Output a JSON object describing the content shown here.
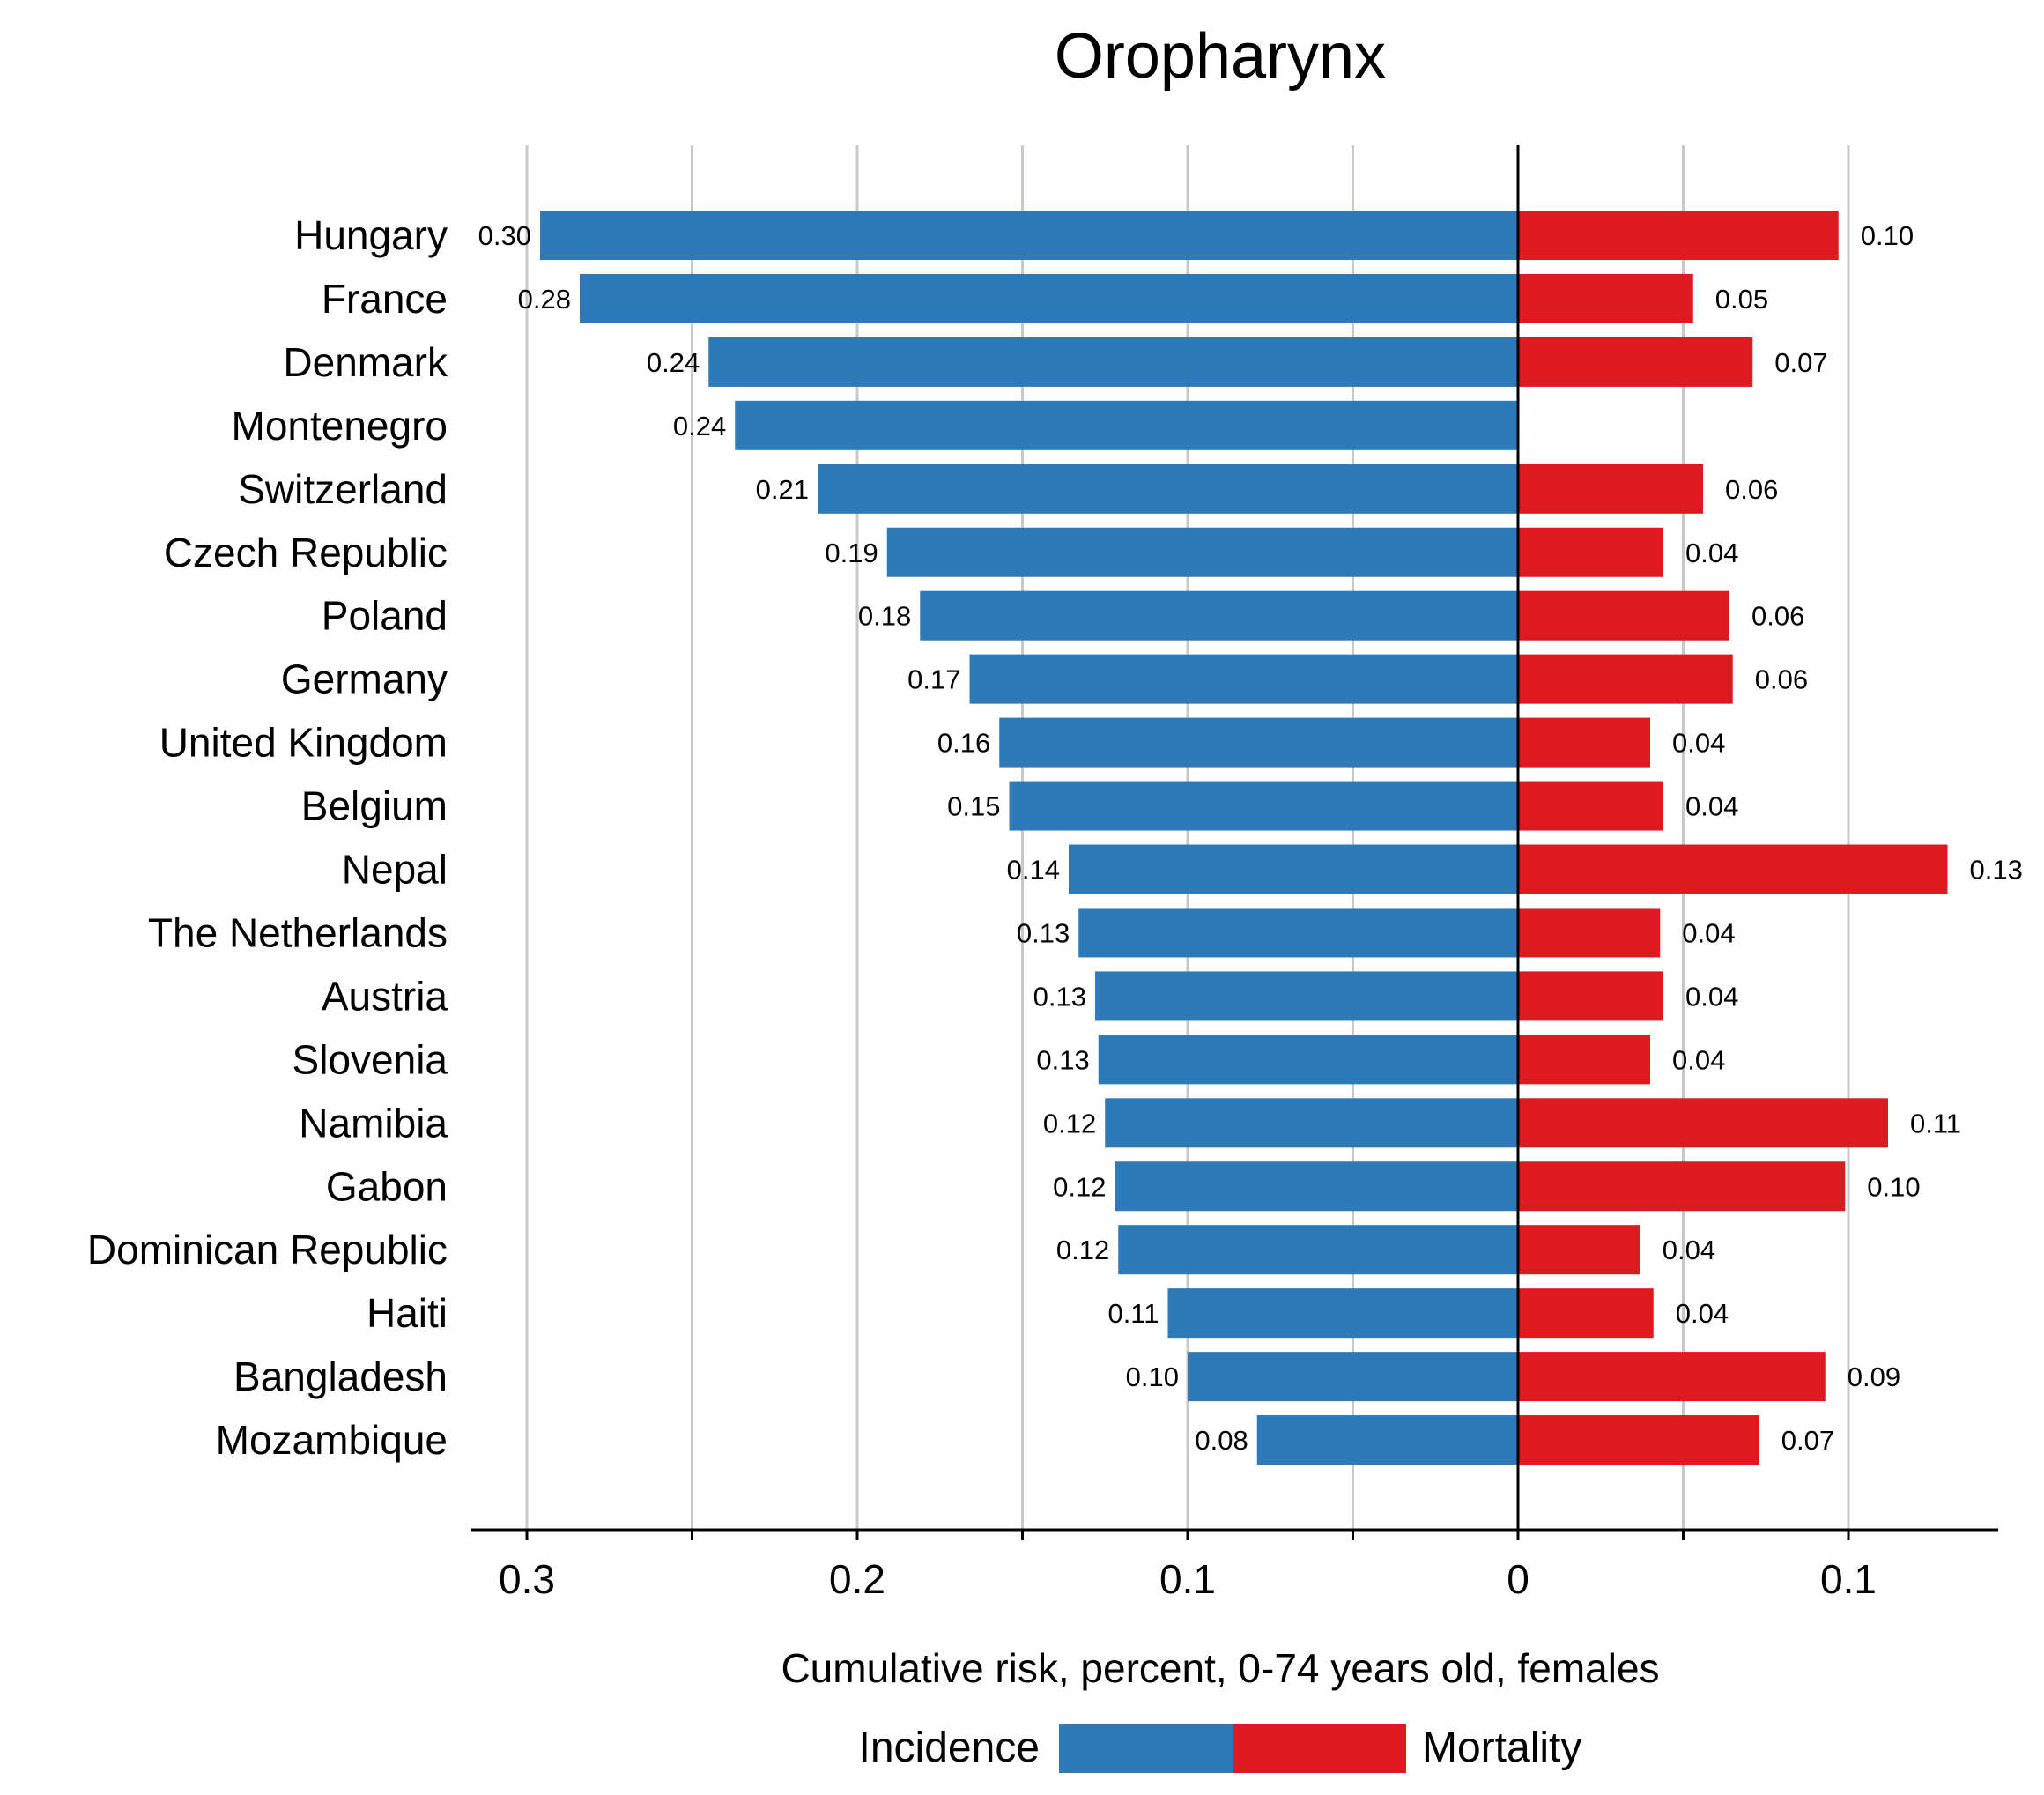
{
  "chart_data": {
    "type": "bar",
    "title": "Oropharynx",
    "xlabel": "Cumulative risk, percent, 0-74 years old, females",
    "colors": {
      "incidence": "#2e7ab8",
      "mortality": "#dc1a1f"
    },
    "grid": true,
    "left_ticks": [
      "0.3",
      "0.2",
      "0.1",
      "0"
    ],
    "right_ticks": [
      "0.1"
    ],
    "left_axis_max": 0.3,
    "right_axis_max": 0.1,
    "categories": [
      "Hungary",
      "France",
      "Denmark",
      "Montenegro",
      "Switzerland",
      "Czech Republic",
      "Poland",
      "Germany",
      "United Kingdom",
      "Belgium",
      "Nepal",
      "The Netherlands",
      "Austria",
      "Slovenia",
      "Namibia",
      "Gabon",
      "Dominican Republic",
      "Haiti",
      "Bangladesh",
      "Mozambique"
    ],
    "series": [
      {
        "name": "Incidence",
        "values": [
          0.296,
          0.284,
          0.245,
          0.237,
          0.212,
          0.191,
          0.181,
          0.166,
          0.157,
          0.154,
          0.136,
          0.133,
          0.128,
          0.127,
          0.125,
          0.122,
          0.121,
          0.106,
          0.1,
          0.079
        ],
        "labels": [
          "0.30",
          "0.28",
          "0.24",
          "0.24",
          "0.21",
          "0.19",
          "0.18",
          "0.17",
          "0.16",
          "0.15",
          "0.14",
          "0.13",
          "0.13",
          "0.13",
          "0.12",
          "0.12",
          "0.12",
          "0.11",
          "0.10",
          "0.08"
        ]
      },
      {
        "name": "Mortality",
        "values": [
          0.097,
          0.053,
          0.071,
          null,
          0.056,
          0.044,
          0.064,
          0.065,
          0.04,
          0.044,
          0.13,
          0.043,
          0.044,
          0.04,
          0.112,
          0.099,
          0.037,
          0.041,
          0.093,
          0.073
        ],
        "labels": [
          "0.10",
          "0.05",
          "0.07",
          "",
          "0.06",
          "0.04",
          "0.06",
          "0.06",
          "0.04",
          "0.04",
          "0.13",
          "0.04",
          "0.04",
          "0.04",
          "0.11",
          "0.10",
          "0.04",
          "0.04",
          "0.09",
          "0.07"
        ]
      }
    ],
    "legend": {
      "position": "bottom",
      "items": [
        "Incidence",
        "Mortality"
      ]
    }
  }
}
